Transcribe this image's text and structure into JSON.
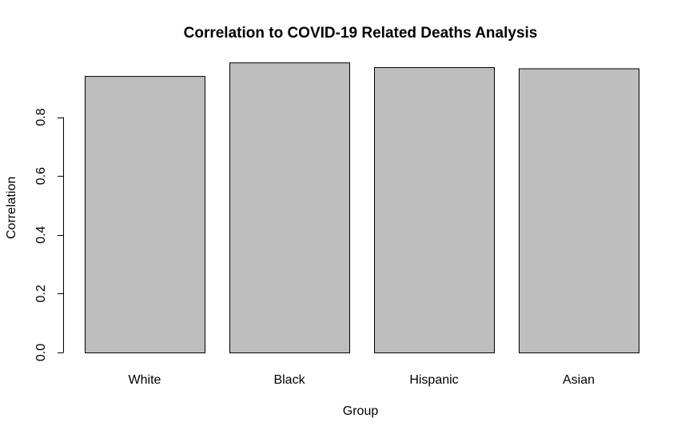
{
  "chart_data": {
    "type": "bar",
    "title": "Correlation to COVID-19 Related Deaths Analysis",
    "xlabel": "Group",
    "ylabel": "Correlation",
    "categories": [
      "White",
      "Black",
      "Hispanic",
      "Asian"
    ],
    "values": [
      0.94,
      0.986,
      0.97,
      0.966
    ],
    "ylim": [
      0,
      1
    ],
    "yticks": [
      0.0,
      0.2,
      0.4,
      0.6,
      0.8
    ],
    "ytick_labels": [
      "0.0",
      "0.2",
      "0.4",
      "0.6",
      "0.8"
    ],
    "bar_color": "#bebebe",
    "bar_border_color": "#000000",
    "grid": false,
    "legend": false
  }
}
